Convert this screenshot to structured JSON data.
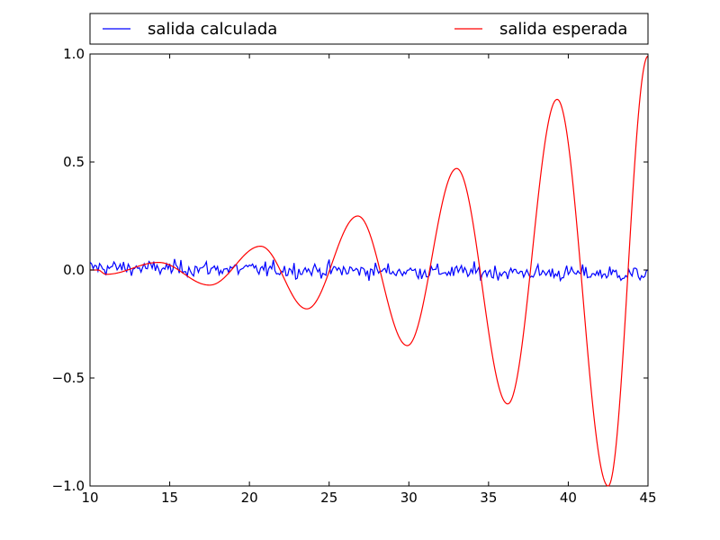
{
  "chart_data": {
    "type": "line",
    "title": "",
    "xlabel": "",
    "ylabel": "",
    "xlim": [
      10,
      45
    ],
    "ylim": [
      -1.0,
      1.0
    ],
    "grid": false,
    "legend_placement": "top, above plot, horizontal",
    "xticks": [
      10,
      15,
      20,
      25,
      30,
      35,
      40,
      45
    ],
    "xtick_labels": [
      "10",
      "15",
      "20",
      "25",
      "30",
      "35",
      "40",
      "45"
    ],
    "yticks": [
      1.0,
      0.5,
      0.0,
      -0.5,
      -1.0
    ],
    "ytick_labels": [
      "1.0",
      "0.5",
      "0.0",
      "−0.5",
      "−1.0"
    ],
    "series": [
      {
        "name": "salida calculada",
        "color": "#0000ff",
        "sampling": {
          "x_start": 10,
          "x_end": 45,
          "step": 0.1
        },
        "description": "noisy signal near zero"
      },
      {
        "name": "salida esperada",
        "color": "#ff0000",
        "sampling": {
          "x_start": 10,
          "x_end": 45,
          "step": 0.05
        },
        "x": [
          10.5,
          11.0,
          14.3,
          17.5,
          20.7,
          23.6,
          26.8,
          29.9,
          33.0,
          36.2,
          39.3,
          42.5,
          45.0
        ],
        "values": [
          0.0,
          -0.02,
          0.035,
          -0.07,
          0.11,
          -0.18,
          0.25,
          -0.35,
          0.47,
          -0.62,
          0.79,
          -1.0,
          0.99
        ]
      }
    ]
  }
}
